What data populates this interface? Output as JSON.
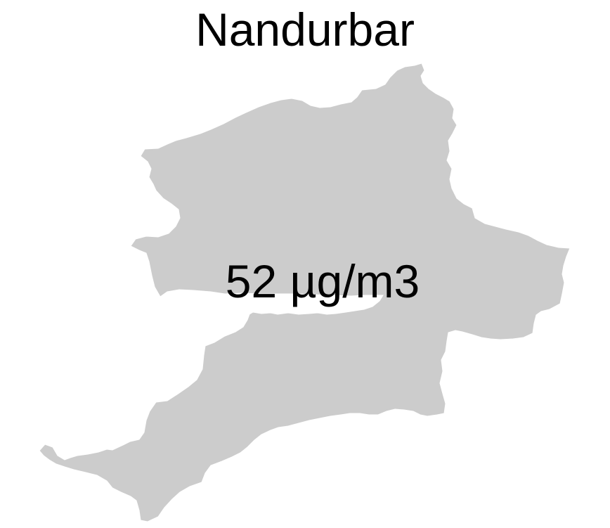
{
  "map": {
    "title": "Nandurbar",
    "value_label": "52 µg/m3",
    "region_fill": "#cccccc",
    "background": "#ffffff"
  }
}
